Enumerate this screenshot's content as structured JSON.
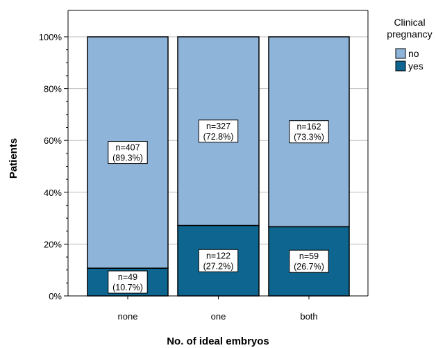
{
  "chart_data": {
    "type": "bar",
    "stacked": true,
    "percent_stacked": true,
    "categories": [
      "none",
      "one",
      "both"
    ],
    "series": [
      {
        "name": "no",
        "color": "#8fb4d9",
        "values": [
          89.3,
          72.8,
          73.3
        ],
        "labels": [
          {
            "n": "n=407",
            "pct": "(89.3%)"
          },
          {
            "n": "n=327",
            "pct": "(72.8%)"
          },
          {
            "n": "n=162",
            "pct": "(73.3%)"
          }
        ]
      },
      {
        "name": "yes",
        "color": "#0e6690",
        "values": [
          10.7,
          27.2,
          26.7
        ],
        "labels": [
          {
            "n": "n=49",
            "pct": "(10.7%)"
          },
          {
            "n": "n=122",
            "pct": "(27.2%)"
          },
          {
            "n": "n=59",
            "pct": "(26.7%)"
          }
        ]
      }
    ],
    "xlabel": "No. of ideal embryos",
    "ylabel": "Patients",
    "ylim": [
      0,
      100
    ],
    "yticks": [
      "0%",
      "20%",
      "40%",
      "60%",
      "80%",
      "100%"
    ],
    "grid": true,
    "legend": {
      "title_line1": "Clinical",
      "title_line2": "pregnancy",
      "placement": "right"
    }
  }
}
